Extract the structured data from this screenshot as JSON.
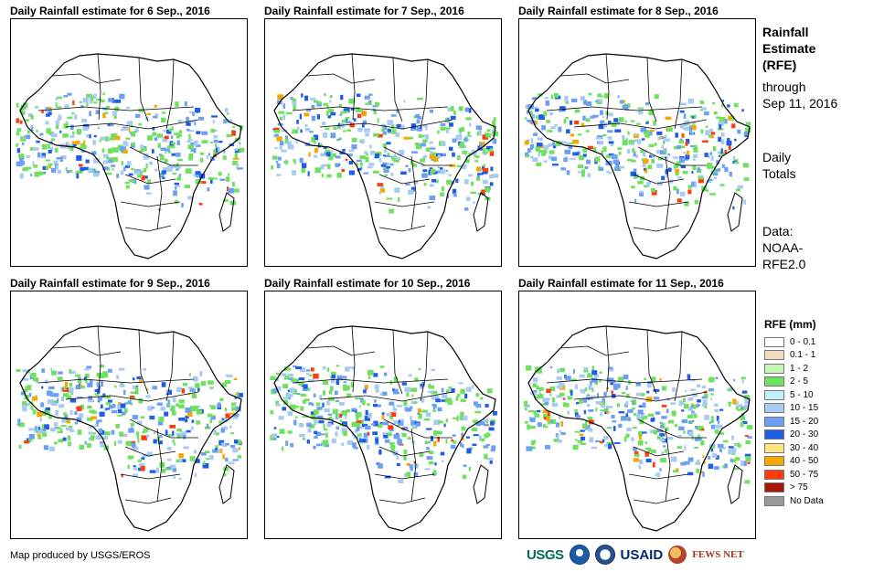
{
  "panels": [
    {
      "title": "Daily Rainfall estimate for 6 Sep., 2016"
    },
    {
      "title": "Daily Rainfall estimate for 7 Sep., 2016"
    },
    {
      "title": "Daily Rainfall estimate for 8 Sep., 2016"
    },
    {
      "title": "Daily Rainfall estimate for 9 Sep., 2016"
    },
    {
      "title": "Daily Rainfall estimate for 10 Sep., 2016"
    },
    {
      "title": "Daily Rainfall estimate for 11 Sep., 2016"
    }
  ],
  "side": {
    "title_line1": "Rainfall",
    "title_line2": "Estimate",
    "title_line3": "(RFE)",
    "through_label": "through",
    "through_date": "Sep 11, 2016",
    "totals_line1": "Daily",
    "totals_line2": "Totals",
    "data_line1": "Data:",
    "data_line2": "NOAA-",
    "data_line3": "RFE2.0"
  },
  "legend": {
    "title": "RFE (mm)",
    "items": [
      {
        "label": "0 - 0.1",
        "color": "#ffffff"
      },
      {
        "label": "0.1 - 1",
        "color": "#f2dcbf"
      },
      {
        "label": "1 - 2",
        "color": "#c7f5b9"
      },
      {
        "label": "2 - 5",
        "color": "#70e060"
      },
      {
        "label": "5 - 10",
        "color": "#c0f0f8"
      },
      {
        "label": "10 - 15",
        "color": "#a7cbf2"
      },
      {
        "label": "15 - 20",
        "color": "#6d9ff2"
      },
      {
        "label": "20 - 30",
        "color": "#1f5de6"
      },
      {
        "label": "30 - 40",
        "color": "#fee580"
      },
      {
        "label": "40 - 50",
        "color": "#f7a800"
      },
      {
        "label": "50 - 75",
        "color": "#ff3a0d"
      },
      {
        "label": "> 75",
        "color": "#a8180a"
      },
      {
        "label": "No Data",
        "color": "#9a9a9a"
      }
    ]
  },
  "credit": "Map produced by USGS/EROS",
  "logos": {
    "usgs": "USGS",
    "usaid": "USAID",
    "fews": "FEWS NET"
  }
}
